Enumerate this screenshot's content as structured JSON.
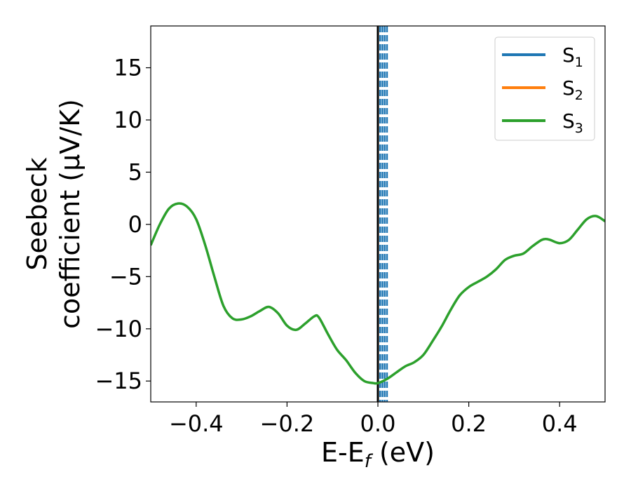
{
  "chart_data": {
    "type": "line",
    "xlabel": {
      "main": "E-E",
      "sub": "f",
      "tail": " (eV)"
    },
    "ylabel": {
      "line1": "Seebeck",
      "line2": "coefficient  (μV/K)"
    },
    "xlim": [
      -0.5,
      0.5
    ],
    "ylim": [
      -17,
      19
    ],
    "xticks": [
      -0.4,
      -0.2,
      0.0,
      0.2,
      0.4
    ],
    "xtick_labels": [
      "−0.4",
      "−0.2",
      "0.0",
      "0.2",
      "0.4"
    ],
    "yticks": [
      -15,
      -10,
      -5,
      0,
      5,
      10,
      15
    ],
    "ytick_labels": [
      "−15",
      "−10",
      "−5",
      "0",
      "5",
      "10",
      "15"
    ],
    "legend_position": "top-right",
    "series": [
      {
        "name": "S",
        "sub": "1",
        "color": "#1f77b4",
        "x": [],
        "y": []
      },
      {
        "name": "S",
        "sub": "2",
        "color": "#ff7f0e",
        "x": [],
        "y": []
      },
      {
        "name": "S",
        "sub": "3",
        "color": "#2ca02c",
        "x": [
          -0.5,
          -0.48,
          -0.46,
          -0.44,
          -0.42,
          -0.4,
          -0.38,
          -0.36,
          -0.34,
          -0.32,
          -0.3,
          -0.28,
          -0.26,
          -0.24,
          -0.22,
          -0.2,
          -0.18,
          -0.16,
          -0.14,
          -0.13,
          -0.11,
          -0.09,
          -0.07,
          -0.05,
          -0.03,
          -0.01,
          0.0,
          0.02,
          0.04,
          0.06,
          0.08,
          0.1,
          0.12,
          0.14,
          0.16,
          0.18,
          0.2,
          0.22,
          0.24,
          0.26,
          0.28,
          0.3,
          0.32,
          0.34,
          0.36,
          0.37,
          0.38,
          0.4,
          0.42,
          0.44,
          0.46,
          0.48,
          0.5
        ],
        "y": [
          -2.0,
          0.0,
          1.5,
          2.0,
          1.7,
          0.5,
          -2.0,
          -5.0,
          -7.8,
          -9.0,
          -9.1,
          -8.8,
          -8.3,
          -7.9,
          -8.5,
          -9.7,
          -10.1,
          -9.5,
          -8.8,
          -8.9,
          -10.5,
          -12.0,
          -13.0,
          -14.2,
          -15.0,
          -15.2,
          -15.2,
          -14.8,
          -14.2,
          -13.6,
          -13.2,
          -12.5,
          -11.2,
          -9.8,
          -8.2,
          -6.8,
          -6.0,
          -5.5,
          -5.0,
          -4.3,
          -3.4,
          -3.0,
          -2.8,
          -2.1,
          -1.5,
          -1.4,
          -1.5,
          -1.8,
          -1.5,
          -0.5,
          0.5,
          0.8,
          0.3
        ]
      }
    ],
    "vertical_lines": [
      {
        "x": 0.0,
        "style": "solid",
        "color": "#000000"
      },
      {
        "x": 0.005,
        "style": "dashed",
        "color": "#1f77b4"
      },
      {
        "x": 0.01,
        "style": "dashed",
        "color": "#1f77b4"
      },
      {
        "x": 0.015,
        "style": "dashed",
        "color": "#1f77b4"
      },
      {
        "x": 0.02,
        "style": "dashed",
        "color": "#1f77b4"
      }
    ]
  }
}
